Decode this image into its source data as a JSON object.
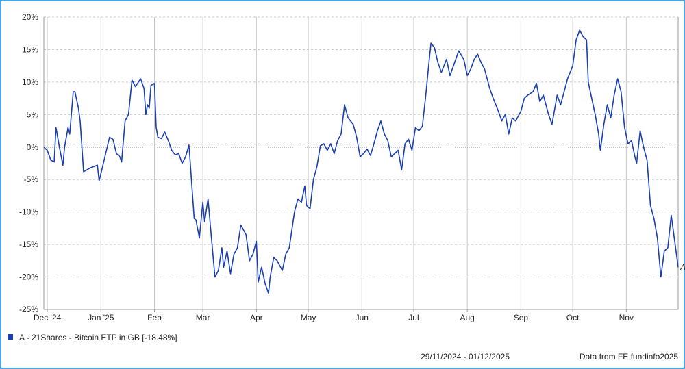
{
  "chart_data": {
    "type": "line",
    "title": "",
    "xlabel": "",
    "ylabel": "",
    "x_tick_labels": [
      "Dec '24",
      "Jan '25",
      "Feb",
      "Mar",
      "Apr",
      "May",
      "Jun",
      "Jul",
      "Aug",
      "Sep",
      "Oct",
      "Nov"
    ],
    "y_tick_labels": [
      "20%",
      "15%",
      "10%",
      "5%",
      "0%",
      "-5%",
      "-10%",
      "-15%",
      "-20%",
      "-25%"
    ],
    "ylim": [
      -25,
      20
    ],
    "xlim": [
      "2024-11-29",
      "2025-12-01"
    ],
    "grid": true,
    "zero_line": true,
    "legend_position": "bottom-left",
    "series": [
      {
        "name": "A - 21Shares - Bitcoin ETP in GB [-18.48%]",
        "label": "A",
        "color": "#1a3fb3",
        "points": [
          [
            "2024-11-29",
            0.0
          ],
          [
            "2024-12-01",
            -0.5
          ],
          [
            "2024-12-03",
            -2.0
          ],
          [
            "2024-12-05",
            -2.3
          ],
          [
            "2024-12-06",
            3.0
          ],
          [
            "2024-12-08",
            0.0
          ],
          [
            "2024-12-10",
            -2.8
          ],
          [
            "2024-12-11",
            0.0
          ],
          [
            "2024-12-13",
            3.0
          ],
          [
            "2024-12-14",
            2.0
          ],
          [
            "2024-12-16",
            8.5
          ],
          [
            "2024-12-17",
            8.5
          ],
          [
            "2024-12-19",
            6.0
          ],
          [
            "2024-12-20",
            4.0
          ],
          [
            "2024-12-22",
            -3.8
          ],
          [
            "2024-12-26",
            -3.2
          ],
          [
            "2024-12-30",
            -2.8
          ],
          [
            "2024-12-31",
            -5.2
          ],
          [
            "2025-01-02",
            -3.0
          ],
          [
            "2025-01-06",
            1.5
          ],
          [
            "2025-01-08",
            1.2
          ],
          [
            "2025-01-10",
            -1.0
          ],
          [
            "2025-01-12",
            -1.5
          ],
          [
            "2025-01-13",
            -2.3
          ],
          [
            "2025-01-15",
            4.0
          ],
          [
            "2025-01-17",
            5.0
          ],
          [
            "2025-01-19",
            10.3
          ],
          [
            "2025-01-21",
            9.3
          ],
          [
            "2025-01-24",
            10.5
          ],
          [
            "2025-01-26",
            9.0
          ],
          [
            "2025-01-27",
            5.0
          ],
          [
            "2025-01-28",
            6.5
          ],
          [
            "2025-01-29",
            6.0
          ],
          [
            "2025-01-30",
            9.5
          ],
          [
            "2025-02-01",
            9.8
          ],
          [
            "2025-02-02",
            3.0
          ],
          [
            "2025-02-03",
            1.5
          ],
          [
            "2025-02-05",
            1.3
          ],
          [
            "2025-02-07",
            2.3
          ],
          [
            "2025-02-09",
            1.0
          ],
          [
            "2025-02-11",
            -0.5
          ],
          [
            "2025-02-13",
            -1.2
          ],
          [
            "2025-02-15",
            -1.0
          ],
          [
            "2025-02-17",
            -2.5
          ],
          [
            "2025-02-19",
            -1.5
          ],
          [
            "2025-02-21",
            0.3
          ],
          [
            "2025-02-24",
            -11.0
          ],
          [
            "2025-02-25",
            -11.2
          ],
          [
            "2025-02-27",
            -14.0
          ],
          [
            "2025-03-01",
            -8.5
          ],
          [
            "2025-03-02",
            -11.5
          ],
          [
            "2025-03-04",
            -8.0
          ],
          [
            "2025-03-06",
            -14.0
          ],
          [
            "2025-03-08",
            -20.0
          ],
          [
            "2025-03-10",
            -19.0
          ],
          [
            "2025-03-12",
            -15.5
          ],
          [
            "2025-03-13",
            -18.5
          ],
          [
            "2025-03-15",
            -16.0
          ],
          [
            "2025-03-17",
            -19.5
          ],
          [
            "2025-03-19",
            -16.5
          ],
          [
            "2025-03-21",
            -15.5
          ],
          [
            "2025-03-23",
            -12.0
          ],
          [
            "2025-03-26",
            -13.5
          ],
          [
            "2025-03-28",
            -17.5
          ],
          [
            "2025-03-30",
            -16.5
          ],
          [
            "2025-04-01",
            -14.5
          ],
          [
            "2025-04-02",
            -20.8
          ],
          [
            "2025-04-04",
            -18.5
          ],
          [
            "2025-04-06",
            -21.0
          ],
          [
            "2025-04-08",
            -22.5
          ],
          [
            "2025-04-09",
            -20.0
          ],
          [
            "2025-04-11",
            -17.0
          ],
          [
            "2025-04-13",
            -17.5
          ],
          [
            "2025-04-16",
            -19.0
          ],
          [
            "2025-04-18",
            -16.5
          ],
          [
            "2025-04-20",
            -15.5
          ],
          [
            "2025-04-23",
            -10.0
          ],
          [
            "2025-04-25",
            -8.0
          ],
          [
            "2025-04-27",
            -8.5
          ],
          [
            "2025-04-29",
            -6.0
          ],
          [
            "2025-04-30",
            -9.0
          ],
          [
            "2025-05-02",
            -9.5
          ],
          [
            "2025-05-04",
            -5.0
          ],
          [
            "2025-05-06",
            -3.0
          ],
          [
            "2025-05-08",
            0.2
          ],
          [
            "2025-05-10",
            0.5
          ],
          [
            "2025-05-12",
            -0.5
          ],
          [
            "2025-05-14",
            0.5
          ],
          [
            "2025-05-16",
            -1.0
          ],
          [
            "2025-05-18",
            1.0
          ],
          [
            "2025-05-20",
            2.0
          ],
          [
            "2025-05-22",
            6.5
          ],
          [
            "2025-05-24",
            4.5
          ],
          [
            "2025-05-27",
            3.5
          ],
          [
            "2025-05-29",
            1.5
          ],
          [
            "2025-05-31",
            -1.5
          ],
          [
            "2025-06-02",
            -1.0
          ],
          [
            "2025-06-04",
            -0.3
          ],
          [
            "2025-06-06",
            -1.3
          ],
          [
            "2025-06-08",
            0.5
          ],
          [
            "2025-06-10",
            2.5
          ],
          [
            "2025-06-12",
            4.0
          ],
          [
            "2025-06-14",
            2.0
          ],
          [
            "2025-06-16",
            1.0
          ],
          [
            "2025-06-18",
            -1.5
          ],
          [
            "2025-06-20",
            -1.0
          ],
          [
            "2025-06-22",
            -0.5
          ],
          [
            "2025-06-24",
            -3.5
          ],
          [
            "2025-06-26",
            0.5
          ],
          [
            "2025-06-28",
            1.2
          ],
          [
            "2025-06-30",
            -0.5
          ],
          [
            "2025-07-02",
            3.0
          ],
          [
            "2025-07-04",
            2.5
          ],
          [
            "2025-07-06",
            3.2
          ],
          [
            "2025-07-08",
            8.0
          ],
          [
            "2025-07-10",
            13.5
          ],
          [
            "2025-07-11",
            16.0
          ],
          [
            "2025-07-13",
            15.3
          ],
          [
            "2025-07-15",
            13.0
          ],
          [
            "2025-07-17",
            11.5
          ],
          [
            "2025-07-20",
            13.5
          ],
          [
            "2025-07-22",
            11.0
          ],
          [
            "2025-07-24",
            12.5
          ],
          [
            "2025-07-27",
            14.8
          ],
          [
            "2025-07-30",
            13.5
          ],
          [
            "2025-08-01",
            11.0
          ],
          [
            "2025-08-03",
            12.0
          ],
          [
            "2025-08-05",
            13.5
          ],
          [
            "2025-08-07",
            14.3
          ],
          [
            "2025-08-09",
            13.0
          ],
          [
            "2025-08-11",
            12.0
          ],
          [
            "2025-08-14",
            9.0
          ],
          [
            "2025-08-16",
            7.5
          ],
          [
            "2025-08-19",
            5.5
          ],
          [
            "2025-08-21",
            4.0
          ],
          [
            "2025-08-23",
            5.0
          ],
          [
            "2025-08-25",
            2.0
          ],
          [
            "2025-08-27",
            4.5
          ],
          [
            "2025-08-29",
            4.0
          ],
          [
            "2025-09-01",
            5.5
          ],
          [
            "2025-09-03",
            7.5
          ],
          [
            "2025-09-05",
            8.0
          ],
          [
            "2025-09-08",
            8.5
          ],
          [
            "2025-09-10",
            9.8
          ],
          [
            "2025-09-12",
            7.0
          ],
          [
            "2025-09-14",
            8.0
          ],
          [
            "2025-09-17",
            5.0
          ],
          [
            "2025-09-19",
            3.5
          ],
          [
            "2025-09-22",
            8.0
          ],
          [
            "2025-09-24",
            6.5
          ],
          [
            "2025-09-26",
            8.5
          ],
          [
            "2025-09-28",
            10.5
          ],
          [
            "2025-10-01",
            12.5
          ],
          [
            "2025-10-03",
            16.5
          ],
          [
            "2025-10-05",
            18.0
          ],
          [
            "2025-10-07",
            17.0
          ],
          [
            "2025-10-09",
            16.5
          ],
          [
            "2025-10-10",
            10.0
          ],
          [
            "2025-10-12",
            7.5
          ],
          [
            "2025-10-14",
            5.0
          ],
          [
            "2025-10-16",
            2.0
          ],
          [
            "2025-10-17",
            -0.5
          ],
          [
            "2025-10-19",
            3.5
          ],
          [
            "2025-10-21",
            6.5
          ],
          [
            "2025-10-23",
            4.5
          ],
          [
            "2025-10-25",
            8.0
          ],
          [
            "2025-10-27",
            10.5
          ],
          [
            "2025-10-29",
            8.5
          ],
          [
            "2025-10-31",
            3.0
          ],
          [
            "2025-11-02",
            0.5
          ],
          [
            "2025-11-04",
            1.0
          ],
          [
            "2025-11-06",
            -1.5
          ],
          [
            "2025-11-07",
            -2.5
          ],
          [
            "2025-11-09",
            2.5
          ],
          [
            "2025-11-11",
            0.0
          ],
          [
            "2025-11-13",
            -2.0
          ],
          [
            "2025-11-15",
            -9.0
          ],
          [
            "2025-11-17",
            -11.0
          ],
          [
            "2025-11-19",
            -14.0
          ],
          [
            "2025-11-21",
            -20.0
          ],
          [
            "2025-11-23",
            -16.0
          ],
          [
            "2025-11-25",
            -15.5
          ],
          [
            "2025-11-27",
            -10.5
          ],
          [
            "2025-11-29",
            -14.5
          ],
          [
            "2025-12-01",
            -18.5
          ]
        ]
      }
    ],
    "annotations": {
      "date_range": "29/11/2024 - 01/12/2025",
      "source": "Data from FE fundinfo2025"
    }
  },
  "colors": {
    "frame": "#4aa3df",
    "grid": "#c8c8c8",
    "axis": "#9a9a9a",
    "line": "#1a3fb3",
    "zero_line": "#222222"
  }
}
